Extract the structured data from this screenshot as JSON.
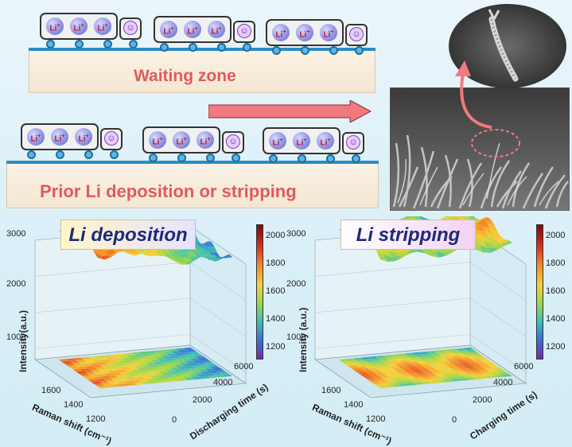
{
  "top_section": {
    "waiting_label": "Waiting zone",
    "prior_label": "Prior Li deposition or stripping",
    "ion_text": "Li",
    "ion_charge": "+",
    "smile_glyph": "☺"
  },
  "colors": {
    "accent_red": "#e05a5e",
    "rail_blue": "#2b8dc2",
    "arrow": "#f07a80"
  },
  "panels": [
    {
      "title": "Li deposition",
      "ylabel": "Intensity(a.u.)",
      "xlabel": "Raman shift (cm⁻¹)",
      "zlabel": "Discharging time (s)",
      "y_ticks": [
        "3000",
        "2000",
        "1000"
      ],
      "x_ticks": [
        "1600",
        "1400",
        "1200"
      ],
      "z_ticks": [
        "0",
        "2000",
        "4000",
        "6000"
      ],
      "cbar_ticks": [
        "2000",
        "1800",
        "1600",
        "1400",
        "1200"
      ]
    },
    {
      "title": "Li stripping",
      "ylabel": "Intensity (a.u.)",
      "xlabel": "Raman shift (cm⁻¹)",
      "zlabel": "Charging time (s)",
      "y_ticks": [
        "3000",
        "2000",
        "1000"
      ],
      "x_ticks": [
        "1600",
        "1400",
        "1200"
      ],
      "z_ticks": [
        "0",
        "2000",
        "4000",
        "6000"
      ],
      "cbar_ticks": [
        "2000",
        "1800",
        "1600",
        "1400",
        "1200"
      ]
    }
  ]
}
